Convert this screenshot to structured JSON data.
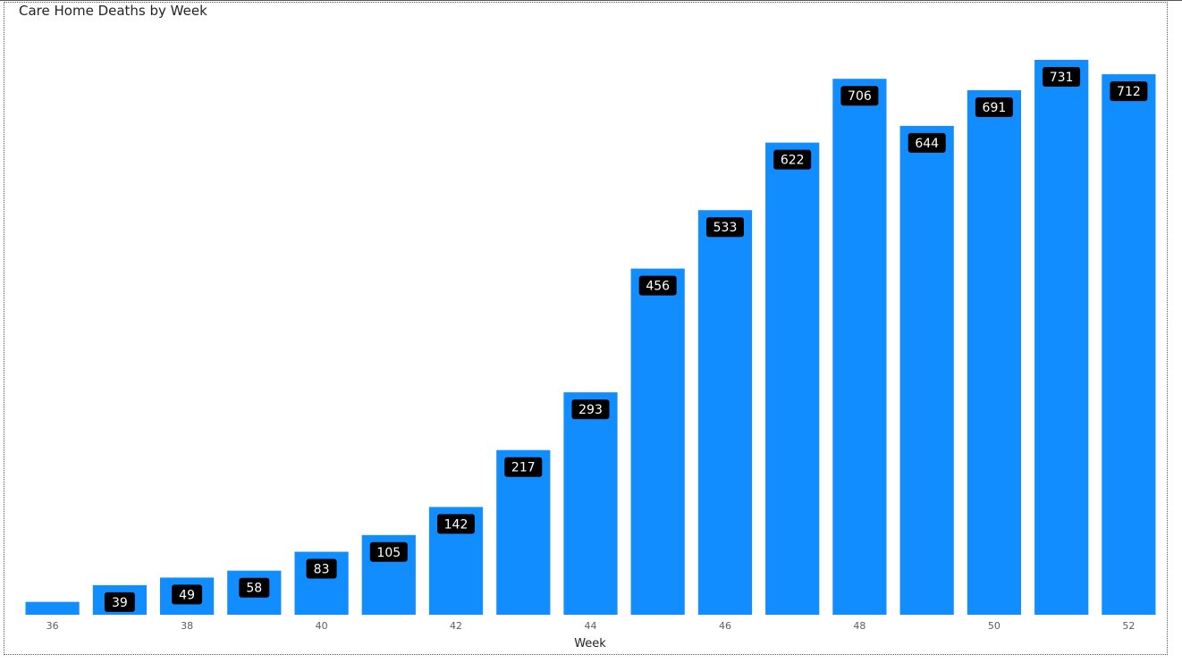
{
  "chart_data": {
    "type": "bar",
    "title": "Care Home Deaths by Week",
    "xlabel": "Week",
    "ylabel": "",
    "categories": [
      "36",
      "37",
      "38",
      "39",
      "40",
      "41",
      "42",
      "43",
      "44",
      "45",
      "46",
      "47",
      "48",
      "49",
      "50",
      "51",
      "52"
    ],
    "values": [
      17,
      39,
      49,
      58,
      83,
      105,
      142,
      217,
      293,
      456,
      533,
      622,
      706,
      644,
      691,
      731,
      712
    ],
    "data_labels": [
      "",
      "39",
      "49",
      "58",
      "83",
      "105",
      "142",
      "217",
      "293",
      "456",
      "533",
      "622",
      "706",
      "644",
      "691",
      "731",
      "712"
    ],
    "x_tick_labels": [
      "36",
      "",
      "38",
      "",
      "40",
      "",
      "42",
      "",
      "44",
      "",
      "46",
      "",
      "48",
      "",
      "50",
      "",
      "52"
    ],
    "ylim": [
      0,
      731
    ],
    "grid": false,
    "legend": "none",
    "bar_color": "#118dff",
    "label_bg_color": "#000000",
    "label_text_color": "#ffffff"
  }
}
